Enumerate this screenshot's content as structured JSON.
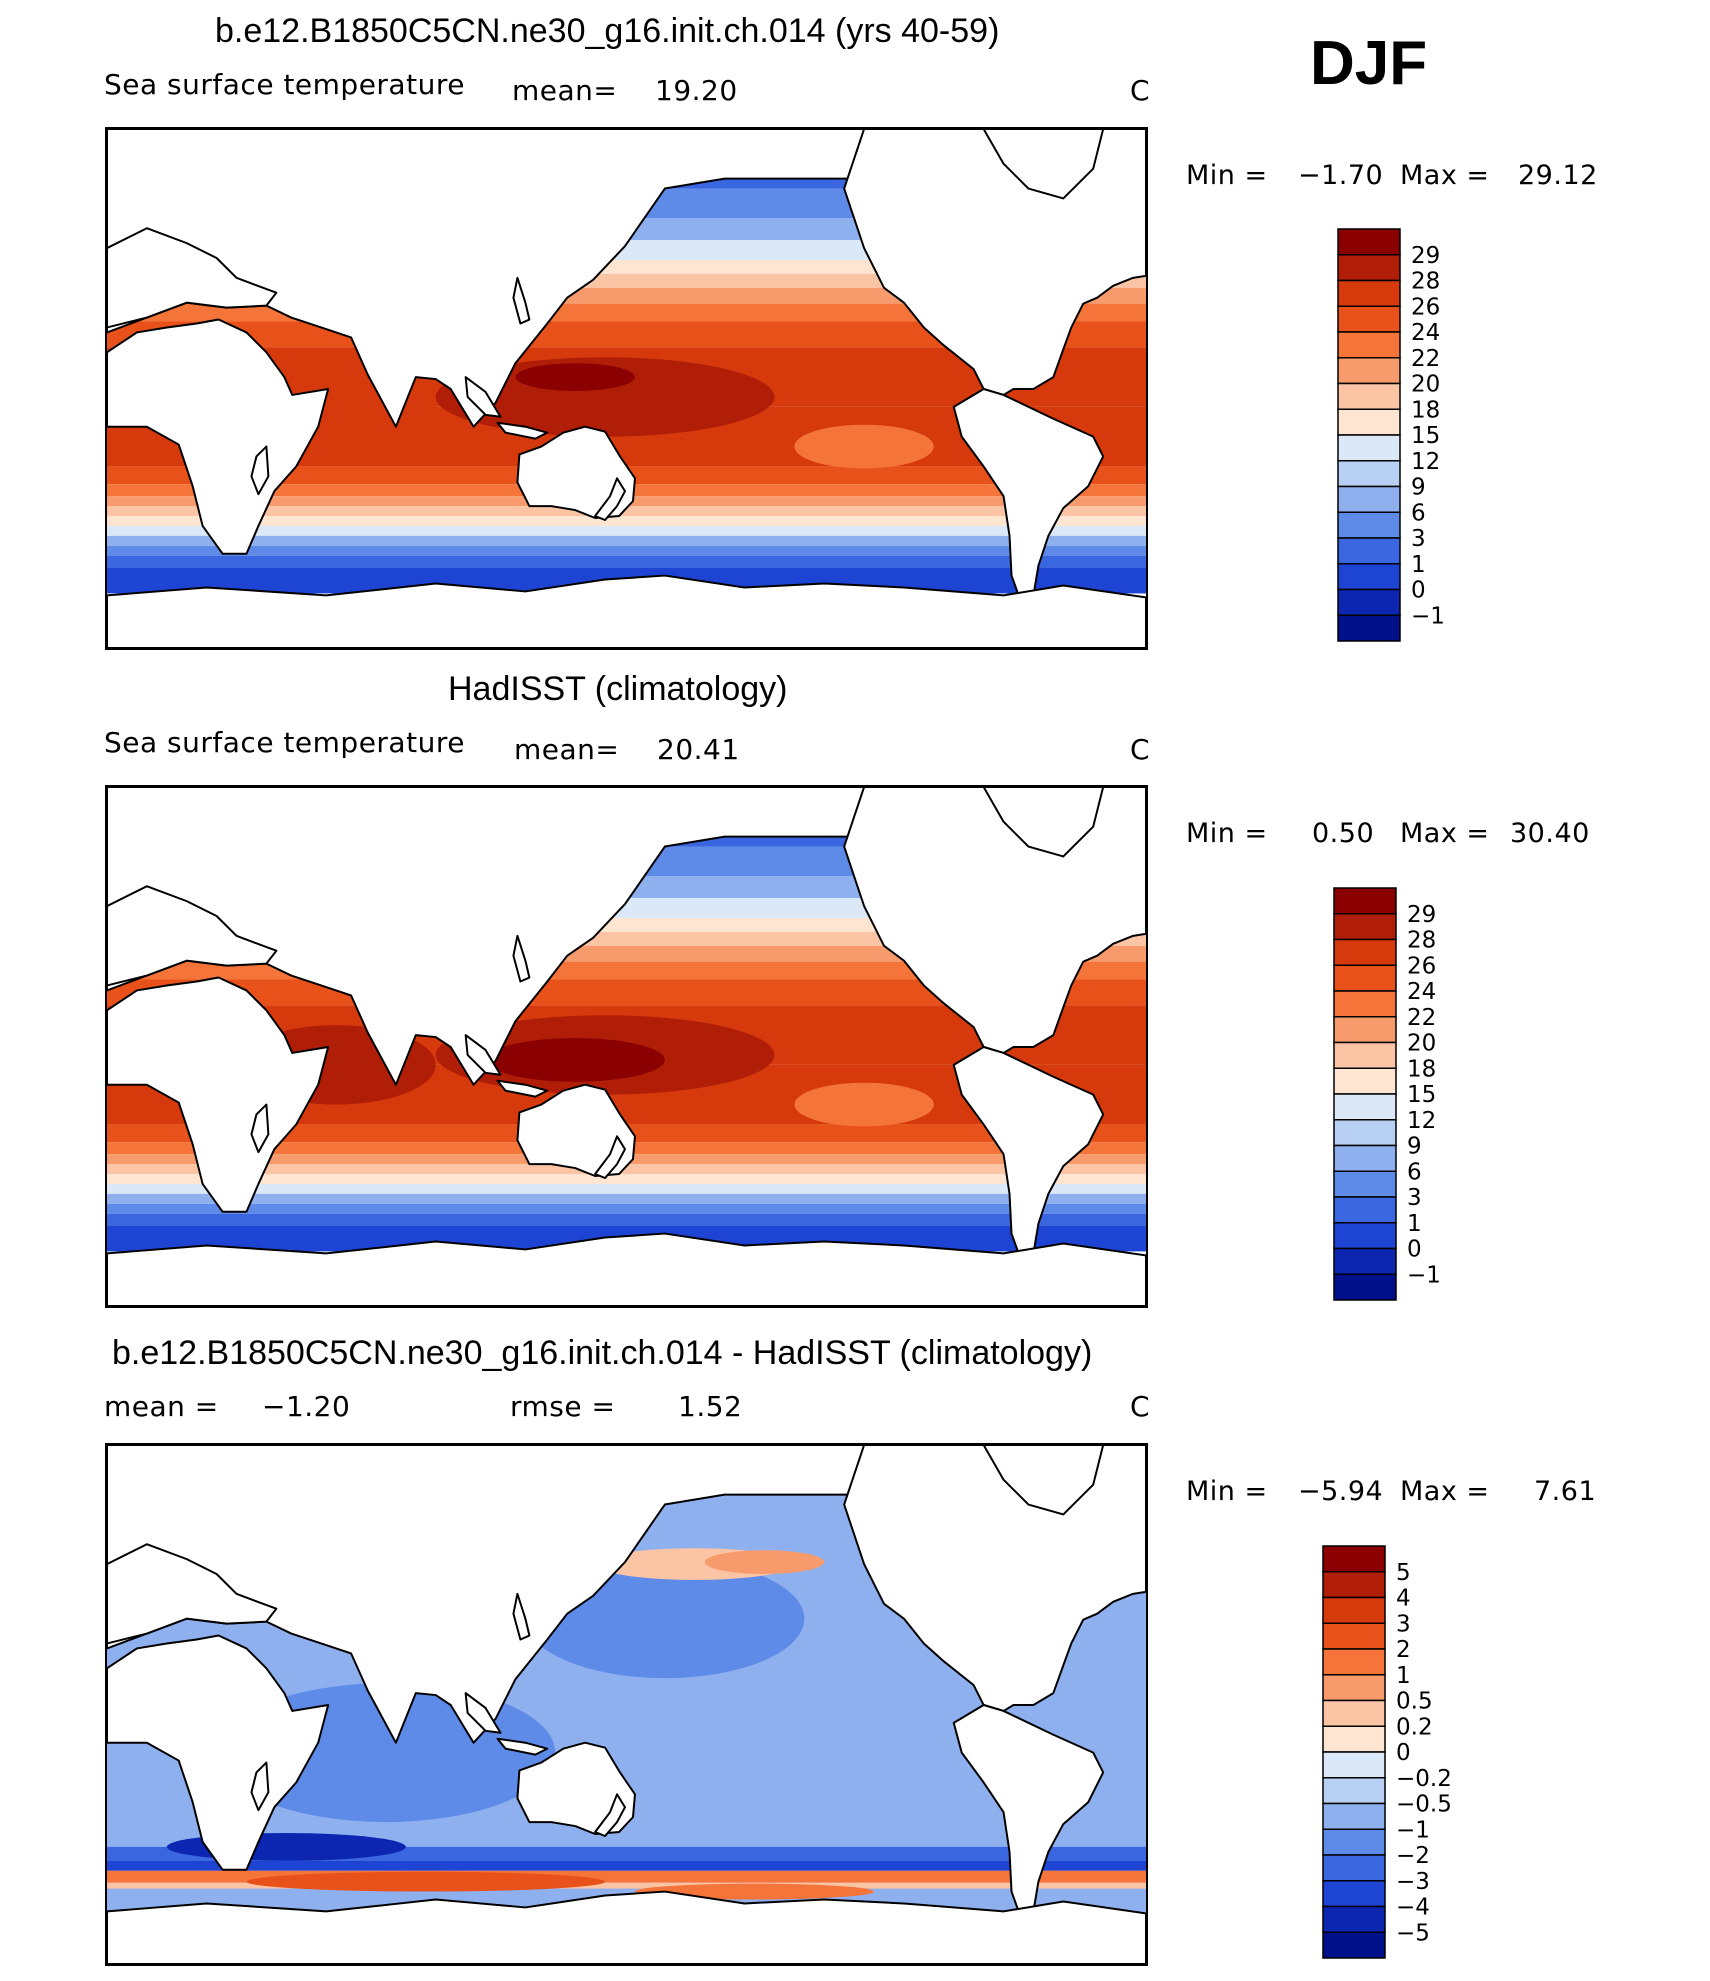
{
  "season": "DJF",
  "panels": [
    {
      "title": "b.e12.B1850C5CN.ne30_g16.init.ch.014 (yrs 40-59)",
      "variable": "Sea surface temperature",
      "stat_left": "mean=",
      "stat_left_value": "19.20",
      "stat_right": "",
      "stat_right_value": "",
      "units": "C",
      "min_label": "Min =",
      "min_value": "−1.70",
      "max_label": "Max =",
      "max_value": "29.12",
      "colorbar": {
        "labels": [
          "29",
          "28",
          "26",
          "24",
          "22",
          "20",
          "18",
          "15",
          "12",
          "9",
          "6",
          "3",
          "1",
          "0",
          "−1"
        ],
        "colors": [
          "#8b0000",
          "#b01e08",
          "#d63a0c",
          "#e8521a",
          "#f4743a",
          "#f79b6c",
          "#fbc4a4",
          "#fde5d2",
          "#dbe8f8",
          "#b8d0f4",
          "#8fb0ee",
          "#5e8ae8",
          "#3a66e0",
          "#1e44d4",
          "#0c26b2",
          "#00108a"
        ]
      },
      "map_style": "model"
    },
    {
      "title": "HadISST (climatology)",
      "variable": "Sea surface temperature",
      "stat_left": "mean=",
      "stat_left_value": "20.41",
      "stat_right": "",
      "stat_right_value": "",
      "units": "C",
      "min_label": "Min =",
      "min_value": "0.50",
      "max_label": "Max =",
      "max_value": "30.40",
      "colorbar": {
        "labels": [
          "29",
          "28",
          "26",
          "24",
          "22",
          "20",
          "18",
          "15",
          "12",
          "9",
          "6",
          "3",
          "1",
          "0",
          "−1"
        ],
        "colors": [
          "#8b0000",
          "#b01e08",
          "#d63a0c",
          "#e8521a",
          "#f4743a",
          "#f79b6c",
          "#fbc4a4",
          "#fde5d2",
          "#dbe8f8",
          "#b8d0f4",
          "#8fb0ee",
          "#5e8ae8",
          "#3a66e0",
          "#1e44d4",
          "#0c26b2",
          "#00108a"
        ]
      },
      "map_style": "obs"
    },
    {
      "title": "b.e12.B1850C5CN.ne30_g16.init.ch.014 - HadISST (climatology)",
      "variable": "",
      "stat_left": "mean =",
      "stat_left_value": "−1.20",
      "stat_right": "rmse =",
      "stat_right_value": "1.52",
      "units": "C",
      "min_label": "Min =",
      "min_value": "−5.94",
      "max_label": "Max =",
      "max_value": "7.61",
      "colorbar": {
        "labels": [
          "5",
          "4",
          "3",
          "2",
          "1",
          "0.5",
          "0.2",
          "0",
          "−0.2",
          "−0.5",
          "−1",
          "−2",
          "−3",
          "−4",
          "−5"
        ],
        "colors": [
          "#8b0000",
          "#b01e08",
          "#d63a0c",
          "#e8521a",
          "#f4743a",
          "#f79b6c",
          "#fbc4a4",
          "#fde5d2",
          "#dbe8f8",
          "#b8d0f4",
          "#8fb0ee",
          "#5e8ae8",
          "#3a66e0",
          "#1e44d4",
          "#0c26b2",
          "#00108a"
        ]
      },
      "map_style": "diff"
    }
  ]
}
